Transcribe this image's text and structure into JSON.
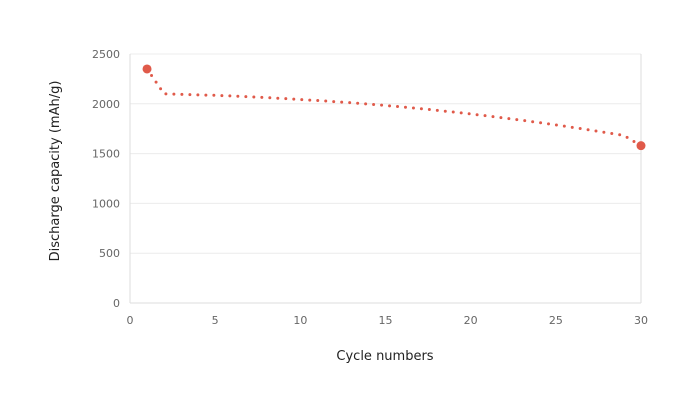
{
  "chart_data": {
    "type": "line",
    "xlabel": "Cycle numbers",
    "ylabel": "Discharge capacity (mAh/g)",
    "xlim": [
      0,
      30
    ],
    "ylim": [
      0,
      2500
    ],
    "xticks": [
      0,
      5,
      10,
      15,
      20,
      25,
      30
    ],
    "yticks": [
      0,
      500,
      1000,
      1500,
      2000,
      2500
    ],
    "grid": true,
    "series_color": "#e05a4a",
    "line_style": "dotted",
    "marked_points": [
      1,
      30
    ],
    "x": [
      1,
      2,
      3,
      4,
      5,
      6,
      7,
      8,
      9,
      10,
      11,
      12,
      13,
      14,
      15,
      16,
      17,
      18,
      19,
      20,
      21,
      22,
      23,
      24,
      25,
      26,
      27,
      28,
      29,
      30
    ],
    "y": [
      2350,
      2100,
      2095,
      2090,
      2085,
      2078,
      2070,
      2062,
      2053,
      2043,
      2033,
      2022,
      2010,
      1997,
      1983,
      1968,
      1952,
      1935,
      1917,
      1898,
      1878,
      1857,
      1835,
      1812,
      1788,
      1763,
      1737,
      1710,
      1682,
      1580
    ]
  }
}
